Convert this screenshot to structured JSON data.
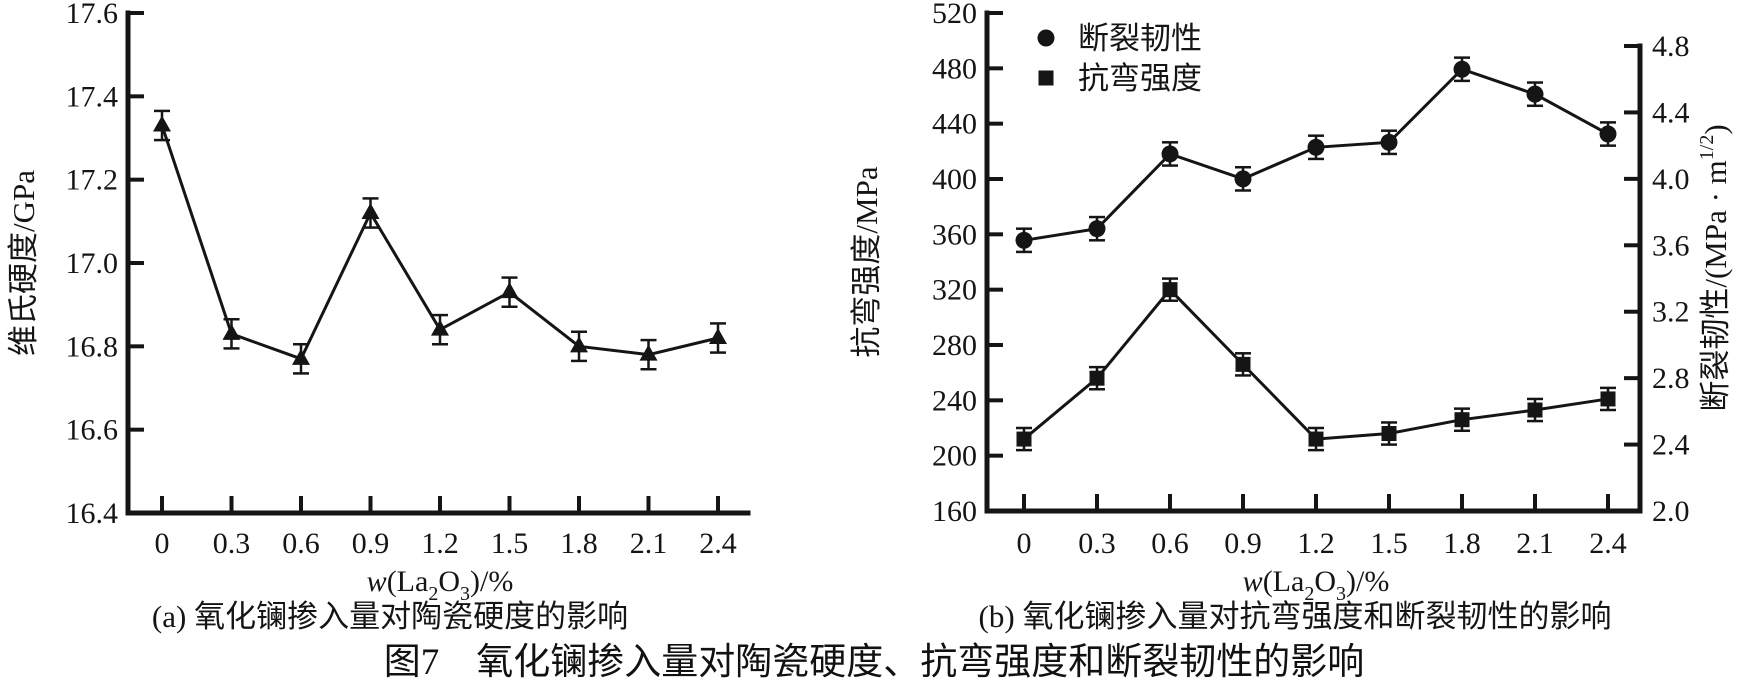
{
  "figure": {
    "title": "图7　氧化镧掺入量对陶瓷硬度、抗弯强度和断裂韧性的影响",
    "ink": "#151515",
    "background": "#ffffff"
  },
  "chart_data": [
    {
      "id": "a",
      "type": "line",
      "caption": "(a) 氧化镧掺入量对陶瓷硬度的影响",
      "xlabel": "w(La₂O₃)/%",
      "xlabel_parts": [
        {
          "t": "w",
          "style": "i"
        },
        {
          "t": "(La"
        },
        {
          "t": "2",
          "style": "sub"
        },
        {
          "t": "O"
        },
        {
          "t": "3",
          "style": "sub"
        },
        {
          "t": ")/%"
        }
      ],
      "ylabel": "维氏硬度/GPa",
      "x_categories": [
        "0",
        "0.3",
        "0.6",
        "0.9",
        "1.2",
        "1.5",
        "1.8",
        "2.1",
        "2.4"
      ],
      "x_values": [
        0,
        0.3,
        0.6,
        0.9,
        1.2,
        1.5,
        1.8,
        2.1,
        2.4
      ],
      "ylim": [
        16.4,
        17.6
      ],
      "yticks": [
        16.4,
        16.6,
        16.8,
        17.0,
        17.2,
        17.4,
        17.6
      ],
      "ytick_labels": [
        "16.4",
        "16.6",
        "16.8",
        "17.0",
        "17.2",
        "17.4",
        "17.6"
      ],
      "grid": "off",
      "series": [
        {
          "name": "维氏硬度",
          "key": "vickers-hardness",
          "marker": "triangle",
          "axis": "y",
          "values": [
            17.33,
            16.83,
            16.77,
            17.12,
            16.84,
            16.93,
            16.8,
            16.78,
            16.82
          ],
          "error": 0.035
        }
      ]
    },
    {
      "id": "b",
      "type": "line",
      "caption": "(b) 氧化镧掺入量对抗弯强度和断裂韧性的影响",
      "xlabel": "w(La₂O₃)/%",
      "xlabel_parts": [
        {
          "t": "w",
          "style": "i"
        },
        {
          "t": "(La"
        },
        {
          "t": "2",
          "style": "sub"
        },
        {
          "t": "O"
        },
        {
          "t": "3",
          "style": "sub"
        },
        {
          "t": ")/%"
        }
      ],
      "ylabel": "抗弯强度/MPa",
      "y2label": "断裂韧性/(MPa · m1/2)",
      "y2label_parts": [
        {
          "t": "断裂韧性/(MPa · m"
        },
        {
          "t": "1/2",
          "style": "sup"
        },
        {
          "t": ")"
        }
      ],
      "x_categories": [
        "0",
        "0.3",
        "0.6",
        "0.9",
        "1.2",
        "1.5",
        "1.8",
        "2.1",
        "2.4"
      ],
      "x_values": [
        0,
        0.3,
        0.6,
        0.9,
        1.2,
        1.5,
        1.8,
        2.1,
        2.4
      ],
      "ylim": [
        160,
        520
      ],
      "yticks": [
        160,
        200,
        240,
        280,
        320,
        360,
        400,
        440,
        480,
        520
      ],
      "ytick_labels": [
        "160",
        "200",
        "240",
        "280",
        "320",
        "360",
        "400",
        "440",
        "480",
        "520"
      ],
      "y2lim": [
        2.0,
        4.8
      ],
      "y2ticks": [
        2.0,
        2.4,
        2.8,
        3.2,
        3.6,
        4.0,
        4.4,
        4.8
      ],
      "y2tick_labels": [
        "2.0",
        "2.4",
        "2.8",
        "3.2",
        "3.6",
        "4.0",
        "4.4",
        "4.8"
      ],
      "grid": "off",
      "legend": {
        "position": "top-left",
        "entries": [
          "断裂韧性",
          "抗弯强度"
        ]
      },
      "series": [
        {
          "name": "断裂韧性",
          "key": "fracture-toughness",
          "marker": "circle",
          "axis": "y2",
          "values": [
            3.63,
            3.7,
            4.15,
            4.0,
            4.19,
            4.22,
            4.66,
            4.51,
            4.27
          ],
          "error": 0.07
        },
        {
          "name": "抗弯强度",
          "key": "flexural-strength",
          "marker": "square",
          "axis": "y",
          "values": [
            212,
            256,
            320,
            266,
            212,
            216,
            226,
            233,
            241
          ],
          "error": 8
        }
      ]
    }
  ]
}
